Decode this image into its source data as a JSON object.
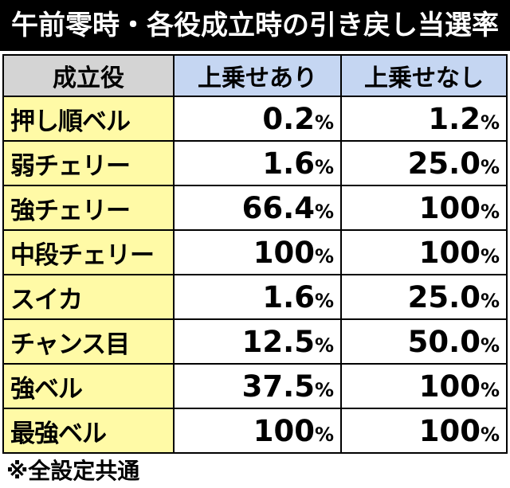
{
  "title": "午前零時・各役成立時の引き戻し当選率",
  "table": {
    "headers": [
      "成立役",
      "上乗せあり",
      "上乗せなし"
    ],
    "rows": [
      {
        "role": "押し順ベル",
        "with_num": "0.2",
        "with_pct": "%",
        "without_num": "1.2",
        "without_pct": "%"
      },
      {
        "role": "弱チェリー",
        "with_num": "1.6",
        "with_pct": "%",
        "without_num": "25.0",
        "without_pct": "%"
      },
      {
        "role": "強チェリー",
        "with_num": "66.4",
        "with_pct": "%",
        "without_num": "100",
        "without_pct": "%"
      },
      {
        "role": "中段チェリー",
        "with_num": "100",
        "with_pct": "%",
        "without_num": "100",
        "without_pct": "%"
      },
      {
        "role": "スイカ",
        "with_num": "1.6",
        "with_pct": "%",
        "without_num": "25.0",
        "without_pct": "%"
      },
      {
        "role": "チャンス目",
        "with_num": "12.5",
        "with_pct": "%",
        "without_num": "50.0",
        "without_pct": "%"
      },
      {
        "role": "強ベル",
        "with_num": "37.5",
        "with_pct": "%",
        "without_num": "100",
        "without_pct": "%"
      },
      {
        "role": "最強ベル",
        "with_num": "100",
        "with_pct": "%",
        "without_num": "100",
        "without_pct": "%"
      }
    ]
  },
  "footnote": "※全設定共通",
  "colors": {
    "title_bg": "#000000",
    "header_role_bg": "#d4d4d4",
    "header_col_bg": "#c5d6f2",
    "role_bg": "#fffaa6",
    "value_bg": "#ffffff"
  }
}
